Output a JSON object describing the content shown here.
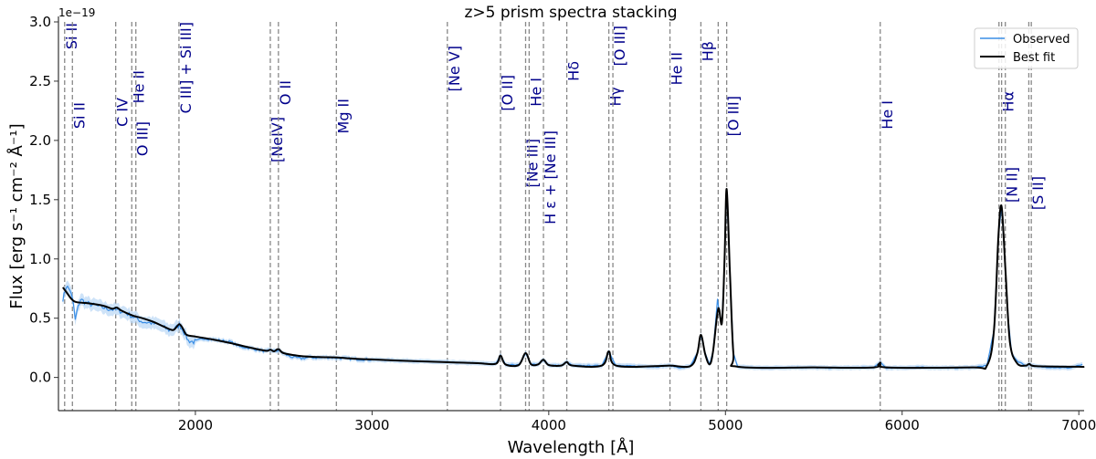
{
  "chart_data": {
    "type": "line",
    "title": "z>5 prism spectra stacking",
    "xlabel": "Wavelength [Å]",
    "ylabel": "Flux  [erg s⁻¹ cm⁻² Å⁻¹]",
    "y_multiplier": "1e−19",
    "xlim": [
      1225,
      7030
    ],
    "ylim": [
      -0.28,
      3.0
    ],
    "xticks": [
      2000,
      3000,
      4000,
      5000,
      6000,
      7000
    ],
    "yticks": [
      0.0,
      0.5,
      1.0,
      1.5,
      2.0,
      2.5,
      3.0
    ],
    "ytick_labels": [
      "0.0",
      "0.5",
      "1.0",
      "1.5",
      "2.0",
      "2.5",
      "3.0"
    ],
    "grid": false,
    "legend_placement": "top-right",
    "colors": {
      "observed": "#3a8ee6",
      "observed_band": "#b9d7f5",
      "best_fit": "#000000",
      "line_marker": "#888888",
      "line_label": "#00008b"
    },
    "series": [
      {
        "name": "Observed",
        "x": [
          1250,
          1270,
          1290,
          1310,
          1320,
          1330,
          1350,
          1380,
          1400,
          1450,
          1500,
          1550,
          1600,
          1650,
          1700,
          1750,
          1800,
          1850,
          1880,
          1910,
          1930,
          1960,
          1990,
          2050,
          2100,
          2150,
          2200,
          2250,
          2300,
          2400,
          2430,
          2450,
          2470,
          2500,
          2550,
          2600,
          2650,
          2700,
          2750,
          2800,
          2900,
          3000,
          3200,
          3400,
          3600,
          3700,
          3727,
          3755,
          3830,
          3869,
          3900,
          3940,
          3970,
          4000,
          4070,
          4102,
          4135,
          4300,
          4340,
          4380,
          4500,
          4600,
          4686,
          4750,
          4800,
          4840,
          4861,
          4885,
          4910,
          4930,
          4955,
          4965,
          4980,
          4995,
          5007,
          5025,
          5045,
          5070,
          5200,
          5400,
          5600,
          5840,
          5876,
          5910,
          6100,
          6300,
          6400,
          6480,
          6520,
          6545,
          6563,
          6585,
          6600,
          6620,
          6650,
          6700,
          6720,
          6760,
          6850,
          6950,
          7020
        ],
        "y": [
          0.66,
          0.77,
          0.74,
          0.62,
          0.48,
          0.56,
          0.66,
          0.63,
          0.62,
          0.6,
          0.58,
          0.57,
          0.55,
          0.51,
          0.47,
          0.46,
          0.44,
          0.4,
          0.41,
          0.44,
          0.4,
          0.31,
          0.3,
          0.33,
          0.32,
          0.31,
          0.3,
          0.26,
          0.25,
          0.22,
          0.23,
          0.22,
          0.23,
          0.2,
          0.17,
          0.16,
          0.17,
          0.165,
          0.17,
          0.165,
          0.155,
          0.15,
          0.14,
          0.13,
          0.12,
          0.115,
          0.185,
          0.11,
          0.105,
          0.205,
          0.11,
          0.11,
          0.15,
          0.105,
          0.1,
          0.13,
          0.1,
          0.1,
          0.22,
          0.1,
          0.095,
          0.09,
          0.1,
          0.08,
          0.095,
          0.2,
          0.36,
          0.2,
          0.11,
          0.22,
          0.66,
          0.55,
          0.46,
          1.0,
          1.59,
          0.9,
          0.2,
          0.09,
          0.08,
          0.085,
          0.08,
          0.085,
          0.125,
          0.08,
          0.085,
          0.08,
          0.085,
          0.1,
          0.4,
          1.2,
          1.44,
          0.9,
          0.5,
          0.2,
          0.14,
          0.1,
          0.11,
          0.09,
          0.085,
          0.08,
          0.11
        ]
      },
      {
        "name": "Best fit",
        "x": [
          1250,
          1270,
          1300,
          1330,
          1400,
          1480,
          1530,
          1555,
          1580,
          1640,
          1700,
          1760,
          1820,
          1870,
          1890,
          1910,
          1930,
          1950,
          2000,
          2100,
          2200,
          2300,
          2400,
          2424,
          2445,
          2470,
          2500,
          2600,
          2700,
          2800,
          2900,
          3000,
          3200,
          3400,
          3600,
          3700,
          3727,
          3755,
          3830,
          3869,
          3900,
          3940,
          3970,
          4000,
          4070,
          4102,
          4135,
          4300,
          4340,
          4380,
          4600,
          4686,
          4800,
          4840,
          4861,
          4885,
          4910,
          4930,
          4959,
          4980,
          4995,
          5007,
          5025,
          5045,
          5070,
          5500,
          5840,
          5876,
          5910,
          6400,
          6480,
          6520,
          6545,
          6563,
          6585,
          6610,
          6650,
          6700,
          6720,
          6760,
          7000,
          7030
        ],
        "y": [
          0.76,
          0.72,
          0.66,
          0.635,
          0.625,
          0.605,
          0.58,
          0.59,
          0.565,
          0.525,
          0.5,
          0.47,
          0.43,
          0.4,
          0.42,
          0.45,
          0.41,
          0.36,
          0.345,
          0.32,
          0.29,
          0.255,
          0.225,
          0.235,
          0.22,
          0.24,
          0.205,
          0.18,
          0.172,
          0.168,
          0.158,
          0.152,
          0.14,
          0.13,
          0.12,
          0.115,
          0.185,
          0.11,
          0.105,
          0.205,
          0.11,
          0.11,
          0.15,
          0.105,
          0.1,
          0.13,
          0.1,
          0.1,
          0.22,
          0.1,
          0.095,
          0.1,
          0.095,
          0.2,
          0.36,
          0.2,
          0.11,
          0.22,
          0.58,
          0.46,
          1.0,
          1.59,
          0.9,
          0.2,
          0.09,
          0.085,
          0.085,
          0.125,
          0.085,
          0.085,
          0.1,
          0.4,
          1.2,
          1.44,
          0.9,
          0.3,
          0.12,
          0.1,
          0.115,
          0.095,
          0.09,
          0.09
        ]
      }
    ],
    "emission_lines": [
      {
        "wavelength": 1260,
        "label": "Si II"
      },
      {
        "wavelength": 1304,
        "label": "Si II"
      },
      {
        "wavelength": 1549,
        "label": "C IV"
      },
      {
        "wavelength": 1640,
        "label": "He II"
      },
      {
        "wavelength": 1663,
        "label": "O III]"
      },
      {
        "wavelength": 1907,
        "label": "C III] + Si III]"
      },
      {
        "wavelength": 2424,
        "label": "[NeIV]"
      },
      {
        "wavelength": 2470,
        "label": "O II"
      },
      {
        "wavelength": 2798,
        "label": "Mg II"
      },
      {
        "wavelength": 3426,
        "label": "[Ne V]"
      },
      {
        "wavelength": 3727,
        "label": "[O II]"
      },
      {
        "wavelength": 3869,
        "label": "[Ne III]"
      },
      {
        "wavelength": 3889,
        "label": "He I"
      },
      {
        "wavelength": 3970,
        "label": "H ε + [Ne III]"
      },
      {
        "wavelength": 4102,
        "label": "Hδ"
      },
      {
        "wavelength": 4340,
        "label": "Hγ"
      },
      {
        "wavelength": 4363,
        "label": "[O III]"
      },
      {
        "wavelength": 4686,
        "label": "He II"
      },
      {
        "wavelength": 4861,
        "label": "Hβ"
      },
      {
        "wavelength": 4959,
        "label": ""
      },
      {
        "wavelength": 5007,
        "label": "[O III]"
      },
      {
        "wavelength": 5876,
        "label": "He I"
      },
      {
        "wavelength": 6548,
        "label": ""
      },
      {
        "wavelength": 6563,
        "label": "Hα"
      },
      {
        "wavelength": 6584,
        "label": "[N II]"
      },
      {
        "wavelength": 6717,
        "label": ""
      },
      {
        "wavelength": 6731,
        "label": "[S II]"
      }
    ],
    "legend": [
      "Observed",
      "Best fit"
    ]
  }
}
